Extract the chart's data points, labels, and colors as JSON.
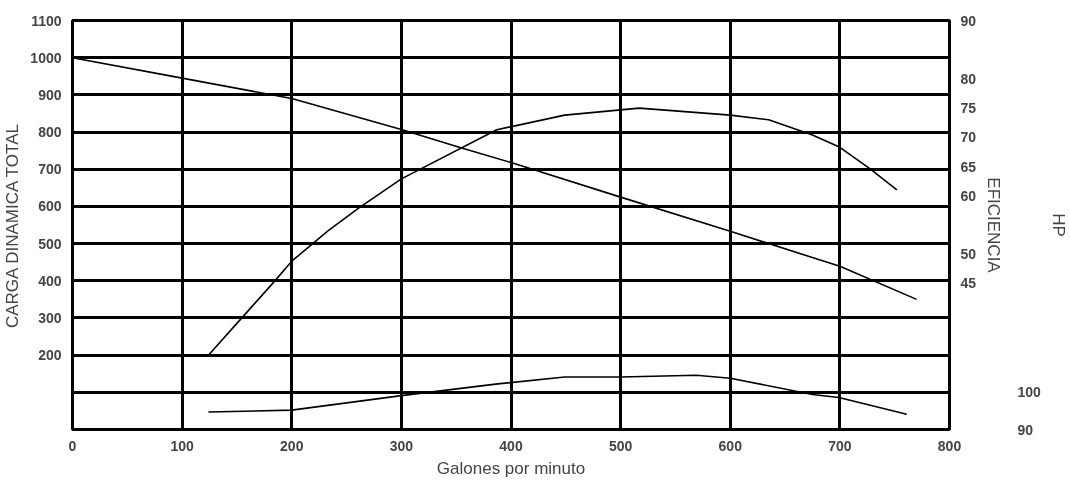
{
  "chart_data": {
    "type": "line",
    "xlabel": "Galones por minuto",
    "ylabel": "CARGA DINAMICA TOTAL",
    "y2label": "EFICIENCIA",
    "y3label": "HP",
    "xlim": [
      0,
      800
    ],
    "xticks": [
      0,
      100,
      200,
      300,
      400,
      500,
      600,
      700,
      800
    ],
    "ylim": [
      0,
      1100
    ],
    "yticks": [
      {
        "value": 100,
        "label": null
      },
      200,
      300,
      400,
      500,
      600,
      700,
      800,
      900,
      1000,
      1100
    ],
    "y2lim": [
      20,
      90
    ],
    "y2ticks": [
      45,
      50,
      60,
      65,
      70,
      75,
      80,
      90
    ],
    "y3lim": [
      90,
      200
    ],
    "y3ticks": [
      90,
      100
    ],
    "grid": true,
    "line_style": "solid",
    "series": [
      {
        "color": "#000000",
        "axis": "y",
        "x": [
          0,
          100,
          200,
          300,
          355,
          400,
          500,
          600,
          700,
          770
        ],
        "values": [
          1000,
          945,
          890,
          807,
          757,
          718,
          625,
          533,
          439,
          350
        ]
      },
      {
        "color": "#000000",
        "axis": "y2",
        "x": [
          124,
          153,
          183,
          200,
          233,
          261,
          300,
          387,
          449,
          517,
          600,
          635,
          675,
          699,
          727,
          752
        ],
        "values": [
          32.7,
          38.8,
          45.1,
          48.8,
          54.0,
          57.9,
          62.9,
          71.3,
          73.8,
          75.0,
          73.8,
          73.0,
          70.4,
          68.4,
          64.7,
          61.0
        ]
      },
      {
        "color": "#000000",
        "axis": "y3",
        "x": [
          124,
          200,
          300,
          386,
          449,
          500,
          569,
          600,
          675,
          699,
          761
        ],
        "values": [
          94.7,
          95.2,
          99.1,
          102.2,
          104.1,
          104.1,
          104.6,
          103.8,
          99.4,
          98.6,
          94.1
        ]
      }
    ]
  }
}
